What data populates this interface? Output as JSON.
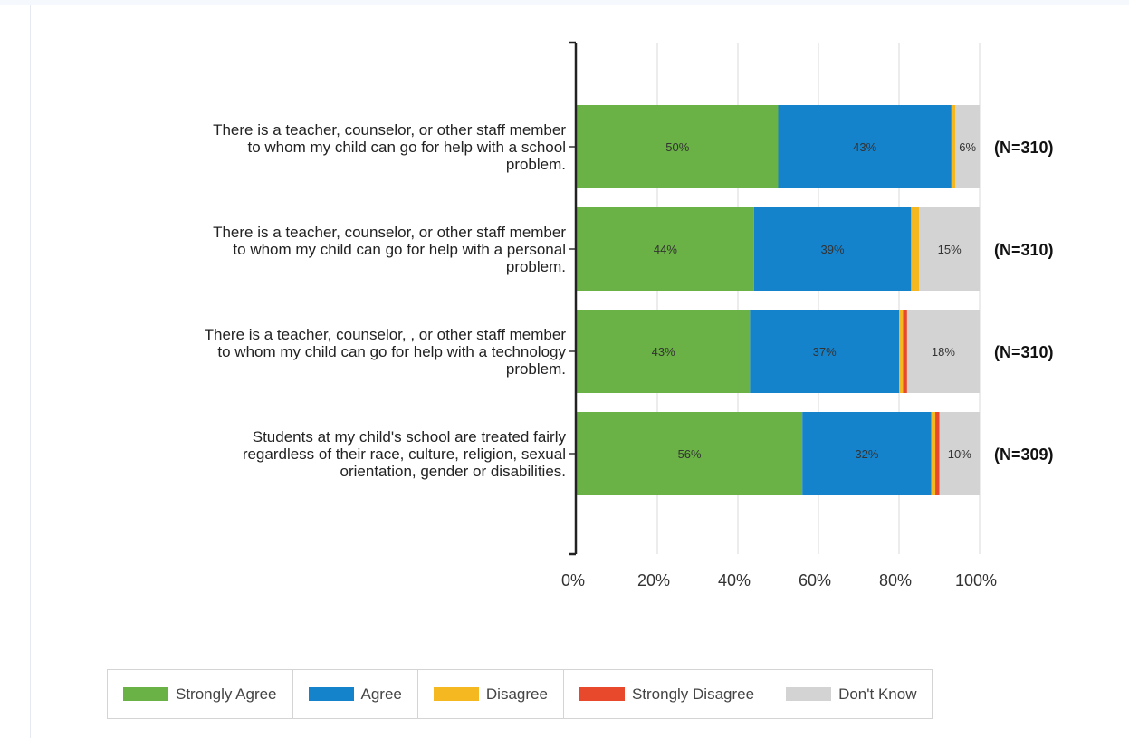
{
  "chart_data": {
    "type": "bar",
    "orientation": "horizontal",
    "stacked": true,
    "categories": [
      [
        "There is a teacher, counselor, or other staff member",
        "to whom my child can go for help with a school",
        "problem."
      ],
      [
        "There is a teacher, counselor, or other staff member",
        "to whom my child can go for help with a personal",
        "problem."
      ],
      [
        "There is a teacher, counselor, , or other staff member",
        "to whom my child can go for help with a technology",
        "problem."
      ],
      [
        "Students at my child's school are treated fairly",
        "regardless of their race, culture, religion, sexual",
        "orientation, gender or disabilities."
      ]
    ],
    "counts": [
      "(N=310)",
      "(N=310)",
      "(N=310)",
      "(N=309)"
    ],
    "series": [
      {
        "name": "Strongly Agree",
        "color": "#6ab245",
        "values": [
          50,
          44,
          43,
          56
        ],
        "labels": [
          "50%",
          "44%",
          "43%",
          "56%"
        ]
      },
      {
        "name": "Agree",
        "color": "#1583cc",
        "values": [
          43,
          39,
          37,
          32
        ],
        "labels": [
          "43%",
          "39%",
          "37%",
          "32%"
        ]
      },
      {
        "name": "Disagree",
        "color": "#f5b820",
        "values": [
          1,
          2,
          1,
          1
        ],
        "labels": [
          "",
          "",
          "",
          ""
        ]
      },
      {
        "name": "Strongly Disagree",
        "color": "#e8492c",
        "values": [
          0,
          0,
          1,
          1
        ],
        "labels": [
          "",
          "",
          "",
          ""
        ]
      },
      {
        "name": "Don't Know",
        "color": "#d3d3d3",
        "values": [
          6,
          15,
          18,
          10
        ],
        "labels": [
          "6%",
          "15%",
          "18%",
          "10%"
        ]
      }
    ],
    "xticks": [
      "0%",
      "20%",
      "40%",
      "60%",
      "80%",
      "100%"
    ],
    "xlim": [
      0,
      100
    ],
    "grid": true,
    "legend_position": "bottom"
  }
}
